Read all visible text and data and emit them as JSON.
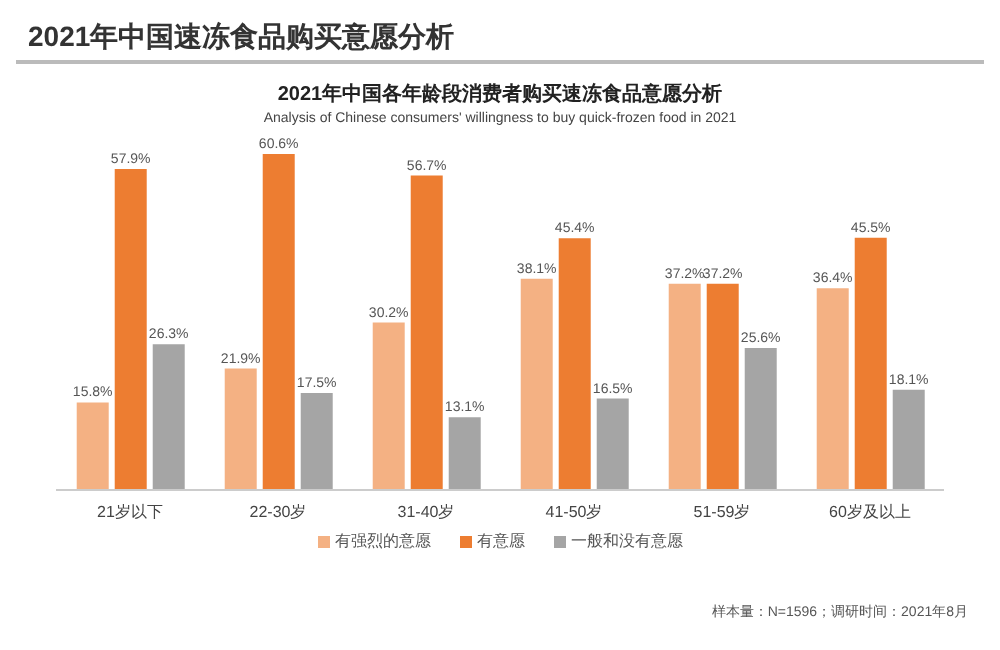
{
  "chart_data": {
    "type": "bar",
    "title": "2021年中国各年龄段消费者购买速冻食品意愿分析",
    "subtitle": "Analysis of Chinese consumers' willingness to buy quick-frozen food in 2021",
    "annotations": [
      "2021年中国速冻食品购买意愿分析",
      "样本量：N=1596；调研时间：2021年8月"
    ],
    "categories": [
      "21岁以下",
      "22-30岁",
      "31-40岁",
      "41-50岁",
      "51-59岁",
      "60岁及以上"
    ],
    "series": [
      {
        "name": "有强烈的意愿",
        "color": "#f4b183",
        "values": [
          15.8,
          21.9,
          30.2,
          38.1,
          37.2,
          36.4
        ],
        "value_labels": [
          "15.8%",
          "21.9%",
          "30.2%",
          "38.1%",
          "37.2%",
          "36.4%"
        ]
      },
      {
        "name": "有意愿",
        "color": "#ed7d31",
        "values": [
          57.9,
          60.6,
          56.7,
          45.4,
          37.2,
          45.5
        ],
        "value_labels": [
          "57.9%",
          "60.6%",
          "56.7%",
          "45.4%",
          "37.2%",
          "45.5%"
        ]
      },
      {
        "name": "一般和没有意愿",
        "color": "#a5a5a5",
        "values": [
          26.3,
          17.5,
          13.1,
          16.5,
          25.6,
          18.1
        ],
        "value_labels": [
          "26.3%",
          "17.5%",
          "13.1%",
          "16.5%",
          "25.6%",
          "18.1%"
        ]
      }
    ],
    "legend": "bottom"
  }
}
